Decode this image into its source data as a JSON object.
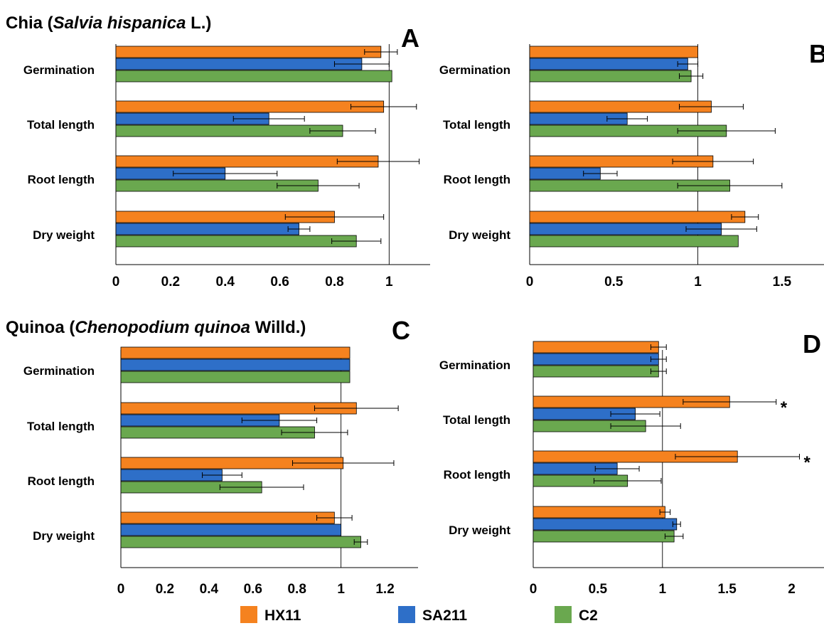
{
  "headings": {
    "chia": {
      "prefix": "Chia (",
      "species": "Salvia hispanica",
      "suffix": " L.)"
    },
    "quinoa": {
      "prefix": "Quinoa (",
      "species": "Chenopodium quinoa",
      "suffix": " Willd.)"
    }
  },
  "colors": {
    "HX11": "#f5821f",
    "SA211": "#2e6fc8",
    "C2": "#6aa84f"
  },
  "legend": [
    "HX11",
    "SA211",
    "C2"
  ],
  "chart_data": [
    {
      "panel": "A",
      "type": "bar",
      "orientation": "horizontal",
      "categories": [
        "Germination",
        "Total length",
        "Root length",
        "Dry weight"
      ],
      "xlim": [
        0,
        1.15
      ],
      "xticks": [
        "0",
        "0.2",
        "0.4",
        "0.6",
        "0.8",
        "1"
      ],
      "xtick_values": [
        0,
        0.2,
        0.4,
        0.6,
        0.8,
        1
      ],
      "reference_line": 1,
      "series": [
        {
          "name": "HX11",
          "values": [
            0.97,
            0.98,
            0.96,
            0.8
          ],
          "errors": [
            0.06,
            0.12,
            0.15,
            0.18
          ]
        },
        {
          "name": "SA211",
          "values": [
            0.9,
            0.56,
            0.4,
            0.67
          ],
          "errors": [
            0.1,
            0.13,
            0.19,
            0.04
          ]
        },
        {
          "name": "C2",
          "values": [
            1.01,
            0.83,
            0.74,
            0.88
          ],
          "errors": [
            0,
            0.12,
            0.15,
            0.09
          ]
        }
      ],
      "significance": []
    },
    {
      "panel": "B",
      "type": "bar",
      "orientation": "horizontal",
      "categories": [
        "Germination",
        "Total length",
        "Root length",
        "Dry weight"
      ],
      "xlim": [
        0,
        1.75
      ],
      "xticks": [
        "0",
        "0.5",
        "1",
        "1.5"
      ],
      "xtick_values": [
        0,
        0.5,
        1,
        1.5
      ],
      "reference_line": 1,
      "series": [
        {
          "name": "HX11",
          "values": [
            1.0,
            1.08,
            1.09,
            1.28
          ],
          "errors": [
            0,
            0.19,
            0.24,
            0.08
          ]
        },
        {
          "name": "SA211",
          "values": [
            0.94,
            0.58,
            0.42,
            1.14
          ],
          "errors": [
            0.06,
            0.12,
            0.1,
            0.21
          ]
        },
        {
          "name": "C2",
          "values": [
            0.96,
            1.17,
            1.19,
            1.24
          ],
          "errors": [
            0.07,
            0.29,
            0.31,
            0
          ]
        }
      ],
      "significance": []
    },
    {
      "panel": "C",
      "type": "bar",
      "orientation": "horizontal",
      "categories": [
        "Germination",
        "Total length",
        "Root length",
        "Dry weight"
      ],
      "xlim": [
        0,
        1.35
      ],
      "xticks": [
        "0",
        "0.2",
        "0.4",
        "0.6",
        "0.8",
        "1",
        "1.2"
      ],
      "xtick_values": [
        0,
        0.2,
        0.4,
        0.6,
        0.8,
        1,
        1.2
      ],
      "reference_line": 1,
      "series": [
        {
          "name": "HX11",
          "values": [
            1.04,
            1.07,
            1.01,
            0.97
          ],
          "errors": [
            0,
            0.19,
            0.23,
            0.08
          ]
        },
        {
          "name": "SA211",
          "values": [
            1.04,
            0.72,
            0.46,
            1.0
          ],
          "errors": [
            0,
            0.17,
            0.09,
            0
          ]
        },
        {
          "name": "C2",
          "values": [
            1.04,
            0.88,
            0.64,
            1.09
          ],
          "errors": [
            0,
            0.15,
            0.19,
            0.03
          ]
        }
      ],
      "significance": []
    },
    {
      "panel": "D",
      "type": "bar",
      "orientation": "horizontal",
      "categories": [
        "Germination",
        "Total length",
        "Root length",
        "Dry weight"
      ],
      "xlim": [
        0,
        2.25
      ],
      "xticks": [
        "0",
        "0.5",
        "1",
        "1.5",
        "2"
      ],
      "xtick_values": [
        0,
        0.5,
        1,
        1.5,
        2
      ],
      "reference_line": 1,
      "series": [
        {
          "name": "HX11",
          "values": [
            0.97,
            1.52,
            1.58,
            1.02
          ],
          "errors": [
            0.06,
            0.36,
            0.48,
            0.04
          ]
        },
        {
          "name": "SA211",
          "values": [
            0.97,
            0.79,
            0.65,
            1.11
          ],
          "errors": [
            0.06,
            0.19,
            0.17,
            0.03
          ]
        },
        {
          "name": "C2",
          "values": [
            0.97,
            0.87,
            0.73,
            1.09
          ],
          "errors": [
            0.06,
            0.27,
            0.26,
            0.07
          ]
        }
      ],
      "significance": [
        {
          "category": "Total length",
          "series": "HX11",
          "mark": "*"
        },
        {
          "category": "Root length",
          "series": "HX11",
          "mark": "*"
        }
      ]
    }
  ]
}
